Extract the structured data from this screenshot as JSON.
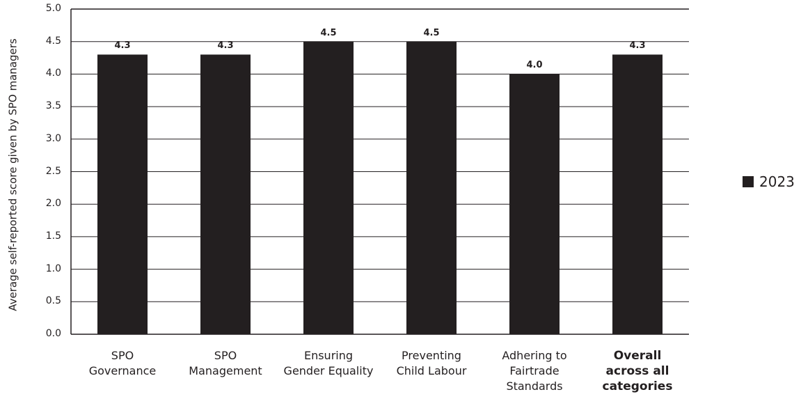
{
  "chart_data": {
    "type": "bar",
    "categories": [
      "SPO Governance",
      "SPO Management",
      "Ensuring Gender Equality",
      "Preventing Child Labour",
      "Adhering to Fairtrade Standards",
      "Overall across all categories"
    ],
    "category_lines": [
      [
        "SPO",
        "Governance"
      ],
      [
        "SPO",
        "Management"
      ],
      [
        "Ensuring",
        "Gender Equality"
      ],
      [
        "Preventing",
        "Child Labour"
      ],
      [
        "Adhering to",
        "Fairtrade",
        "Standards"
      ],
      [
        "Overall",
        "across all",
        "categories"
      ]
    ],
    "emphasized_category_index": 5,
    "series": [
      {
        "name": "2023",
        "values": [
          4.3,
          4.3,
          4.5,
          4.5,
          4.0,
          4.3
        ],
        "color": "#231f20"
      }
    ],
    "data_labels": [
      "4.3",
      "4.3",
      "4.5",
      "4.5",
      "4.0",
      "4.3"
    ],
    "ylabel": "Average self-reported score given by SPO managers",
    "xlabel": "",
    "ylim": [
      0,
      5
    ],
    "yticks": [
      "0.0",
      "0.5",
      "1.0",
      "1.5",
      "2.0",
      "2.5",
      "3.0",
      "3.5",
      "4.0",
      "4.5",
      "5.0"
    ],
    "grid": true,
    "legend_position": "right"
  }
}
